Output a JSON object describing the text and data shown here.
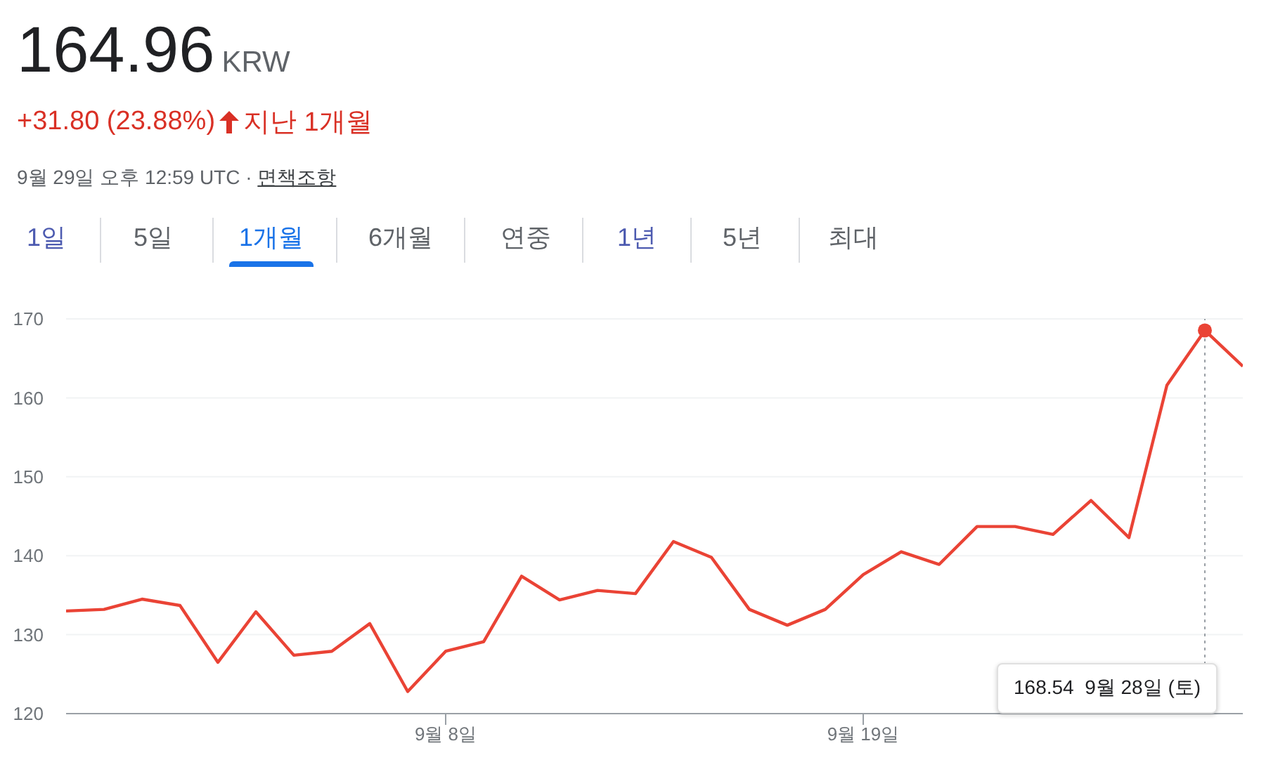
{
  "chart_data": {
    "type": "line",
    "title": "164.96",
    "annotations": [
      "KRW",
      "+31.80 (23.88%)",
      "지난 1개월",
      "9월 29일 오후 12:59 UTC ·",
      "면책조항",
      "1일",
      "5일",
      "1개월",
      "6개월",
      "연중",
      "1년",
      "5년",
      "최대",
      "168.54  9월 28일 (토)"
    ],
    "x": [
      "--08-29",
      "--08-30",
      "--08-31",
      "--09-01",
      "--09-02",
      "--09-03",
      "--09-04",
      "--09-05",
      "--09-06",
      "--09-07",
      "--09-08",
      "--09-09",
      "--09-10",
      "--09-11",
      "--09-12",
      "--09-13",
      "--09-14",
      "--09-15",
      "--09-16",
      "--09-17",
      "--09-18",
      "--09-19",
      "--09-20",
      "--09-21",
      "--09-22",
      "--09-23",
      "--09-24",
      "--09-25",
      "--09-26",
      "--09-27",
      "--09-28",
      "--09-29"
    ],
    "series": [
      {
        "color": "#ea4335",
        "values": [
          133.0,
          133.2,
          134.5,
          133.7,
          126.5,
          132.9,
          127.4,
          127.9,
          131.4,
          122.8,
          127.9,
          129.1,
          137.4,
          134.4,
          135.6,
          135.2,
          141.8,
          139.8,
          133.2,
          131.2,
          133.2,
          137.6,
          140.5,
          138.9,
          143.7,
          143.7,
          142.7,
          147.0,
          142.3,
          161.6,
          168.54,
          164.0
        ]
      }
    ],
    "xlim": [
      "--08-29",
      "--09-29"
    ],
    "xticks": [
      {
        "value": "--09-08",
        "label": "9월 8일"
      },
      {
        "value": "--09-19",
        "label": "9월 19일"
      }
    ],
    "ylim": [
      120,
      170
    ],
    "yticks": [
      120,
      130,
      140,
      150,
      160,
      170
    ],
    "ref_lines": [
      {
        "axis": "x",
        "value": "--09-28",
        "color": "#9aa0a6",
        "line_style": "dotted"
      }
    ],
    "grid": "y",
    "legend": false,
    "marker": "none",
    "line_style": "solid"
  }
}
